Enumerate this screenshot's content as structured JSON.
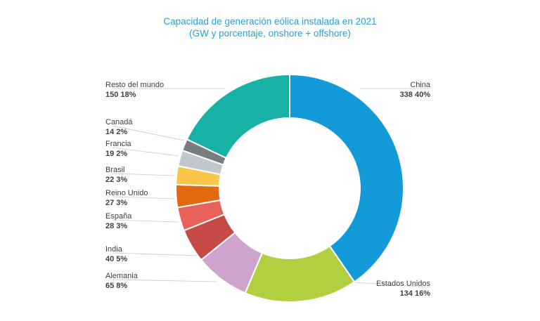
{
  "chart_data": {
    "type": "pie",
    "title": "Capacidad de generación eólica instalada en 2021",
    "subtitle": "(GW y porcentaje, onshore + offshore)",
    "categories": [
      "China",
      "Estados Unidos",
      "Alemania",
      "India",
      "España",
      "Reino Unido",
      "Brasil",
      "Francia",
      "Canadá",
      "Resto del mundo"
    ],
    "values": [
      338,
      134,
      65,
      40,
      28,
      27,
      22,
      19,
      14,
      150
    ],
    "percent_labels": [
      "40%",
      "16%",
      "8%",
      "5%",
      "3%",
      "3%",
      "3%",
      "2%",
      "2%",
      "18%"
    ],
    "colors": [
      "#139ad8",
      "#b2cf3f",
      "#cea4cf",
      "#c64a46",
      "#e9625a",
      "#e1690f",
      "#f9c64a",
      "#c1c8cf",
      "#7a7d80",
      "#18b1a6"
    ],
    "donut": true
  }
}
